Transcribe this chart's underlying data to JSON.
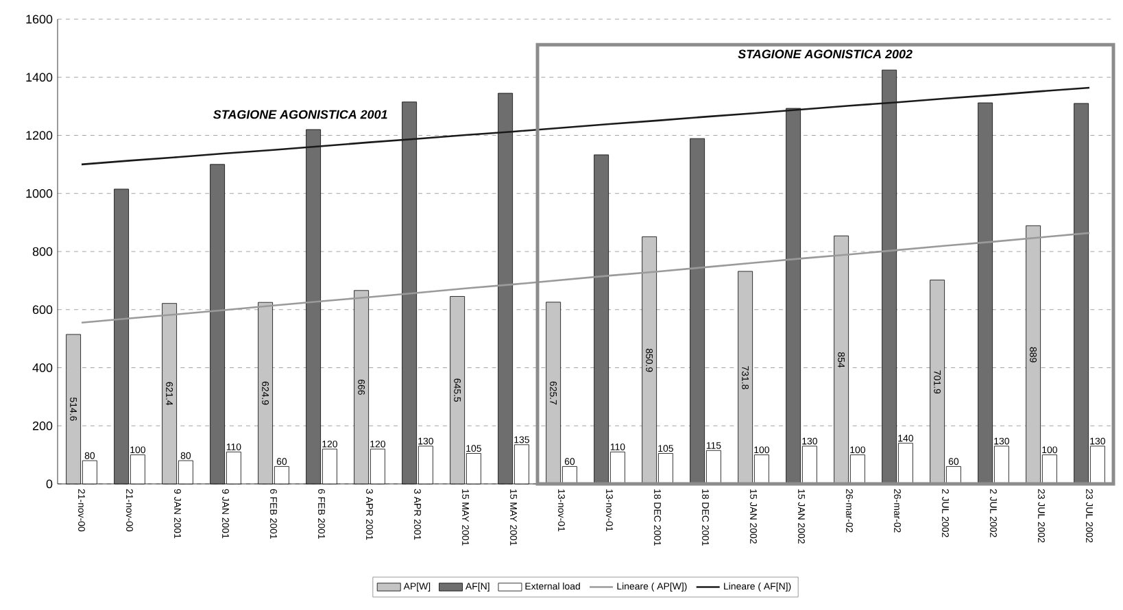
{
  "chart_data": {
    "type": "bar",
    "categories": [
      "21-nov-00",
      "21-nov-00",
      "9 JAN 2001",
      "9 JAN 2001",
      "6 FEB 2001",
      "6 FEB 2001",
      "3 APR 2001",
      "3 APR 2001",
      "15 MAY 2001",
      "15 MAY 2001",
      "13-nov-01",
      "13-nov-01",
      "18 DEC 2001",
      "18 DEC 2001",
      "15 JAN 2002",
      "15 JAN 2002",
      "26-mar-02",
      "26-mar-02",
      "2 JUL 2002",
      "2 JUL 2002",
      "23 JUL 2002",
      "23 JUL 2002"
    ],
    "series": [
      {
        "name": "AP[W]",
        "color": "#c4c4c4",
        "values": [
          514.6,
          null,
          621.4,
          null,
          624.9,
          null,
          666,
          null,
          645.5,
          null,
          625.7,
          null,
          850.9,
          null,
          731.8,
          null,
          854,
          null,
          701.9,
          null,
          889,
          null
        ],
        "value_labels": [
          "514.6",
          null,
          "621.4",
          null,
          "624.9",
          null,
          "666",
          null,
          "645.5",
          null,
          "625.7",
          null,
          "850.9",
          null,
          "731.8",
          null,
          "854",
          null,
          "701.9",
          null,
          "889",
          null
        ]
      },
      {
        "name": "AF[N]",
        "color": "#6e6e6e",
        "values": [
          null,
          1015,
          null,
          1100,
          null,
          1220,
          null,
          1315,
          null,
          1345,
          null,
          1133,
          null,
          1189,
          null,
          1293,
          null,
          1425,
          null,
          1312,
          null,
          1310
        ]
      },
      {
        "name": "External load",
        "color": "#ffffff",
        "values": [
          80,
          100,
          80,
          110,
          60,
          120,
          120,
          130,
          105,
          135,
          60,
          110,
          105,
          115,
          100,
          130,
          100,
          140,
          60,
          130,
          100,
          130
        ],
        "value_labels": [
          "80",
          "100",
          "80",
          "110",
          "60",
          "120",
          "120",
          "130",
          "105",
          "135",
          "60",
          "110",
          "105",
          "115",
          "100",
          "130",
          "100",
          "140",
          "60",
          "130",
          "100",
          "130"
        ]
      },
      {
        "name": "Lineare ( AP[W])",
        "type": "line",
        "color": "#9a9a9a",
        "values": [
          555,
          570,
          584,
          599,
          614,
          629,
          643,
          658,
          673,
          687,
          702,
          717,
          731,
          746,
          761,
          776,
          790,
          805,
          820,
          834,
          849,
          864
        ]
      },
      {
        "name": "Lineare ( AF[N])",
        "type": "line",
        "color": "#1a1a1a",
        "values": [
          1100,
          1113,
          1125,
          1138,
          1150,
          1163,
          1176,
          1188,
          1201,
          1213,
          1226,
          1239,
          1251,
          1264,
          1276,
          1289,
          1302,
          1314,
          1327,
          1339,
          1352,
          1364
        ]
      }
    ],
    "annotations": [
      "STAGIONE AGONISTICA 2001",
      "STAGIONE AGONISTICA 2002"
    ],
    "ylim": [
      0,
      1600
    ],
    "yticks": [
      0,
      200,
      400,
      600,
      800,
      1000,
      1200,
      1400,
      1600
    ],
    "grid": "y",
    "legend": "bottom"
  }
}
